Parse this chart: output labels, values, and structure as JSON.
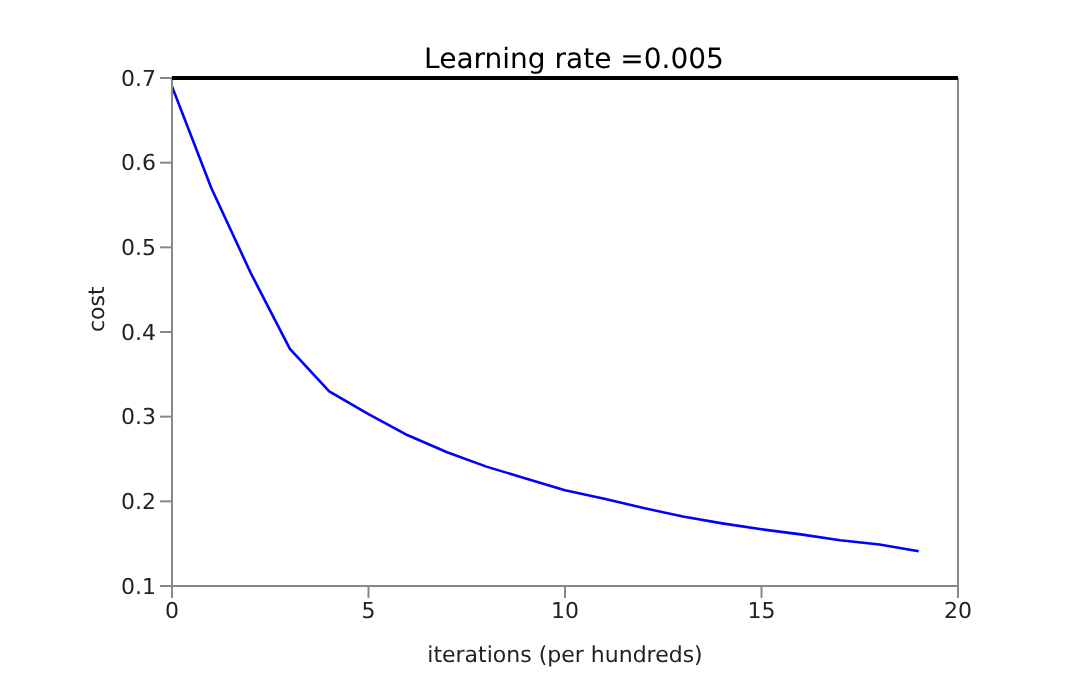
{
  "chart_data": {
    "type": "line",
    "title": "Learning rate =0.005",
    "xlabel": "iterations (per hundreds)",
    "ylabel": "cost",
    "x": [
      0,
      1,
      2,
      3,
      4,
      5,
      6,
      7,
      8,
      9,
      10,
      11,
      12,
      13,
      14,
      15,
      16,
      17,
      18,
      19
    ],
    "series": [
      {
        "color": "#0000ff",
        "values": [
          0.69,
          0.57,
          0.47,
          0.38,
          0.33,
          0.303,
          0.278,
          0.258,
          0.241,
          0.227,
          0.213,
          0.203,
          0.192,
          0.182,
          0.174,
          0.167,
          0.161,
          0.154,
          0.149,
          0.141
        ]
      }
    ],
    "xlim": [
      0,
      20
    ],
    "xticks": [
      0,
      5,
      10,
      15,
      20
    ],
    "ylim": [
      0.1,
      0.7
    ],
    "yticks": [
      0.1,
      0.2,
      0.3,
      0.4,
      0.5,
      0.6,
      0.7
    ],
    "grid": false,
    "legend": false,
    "marker": "none",
    "line_style": "solid"
  }
}
